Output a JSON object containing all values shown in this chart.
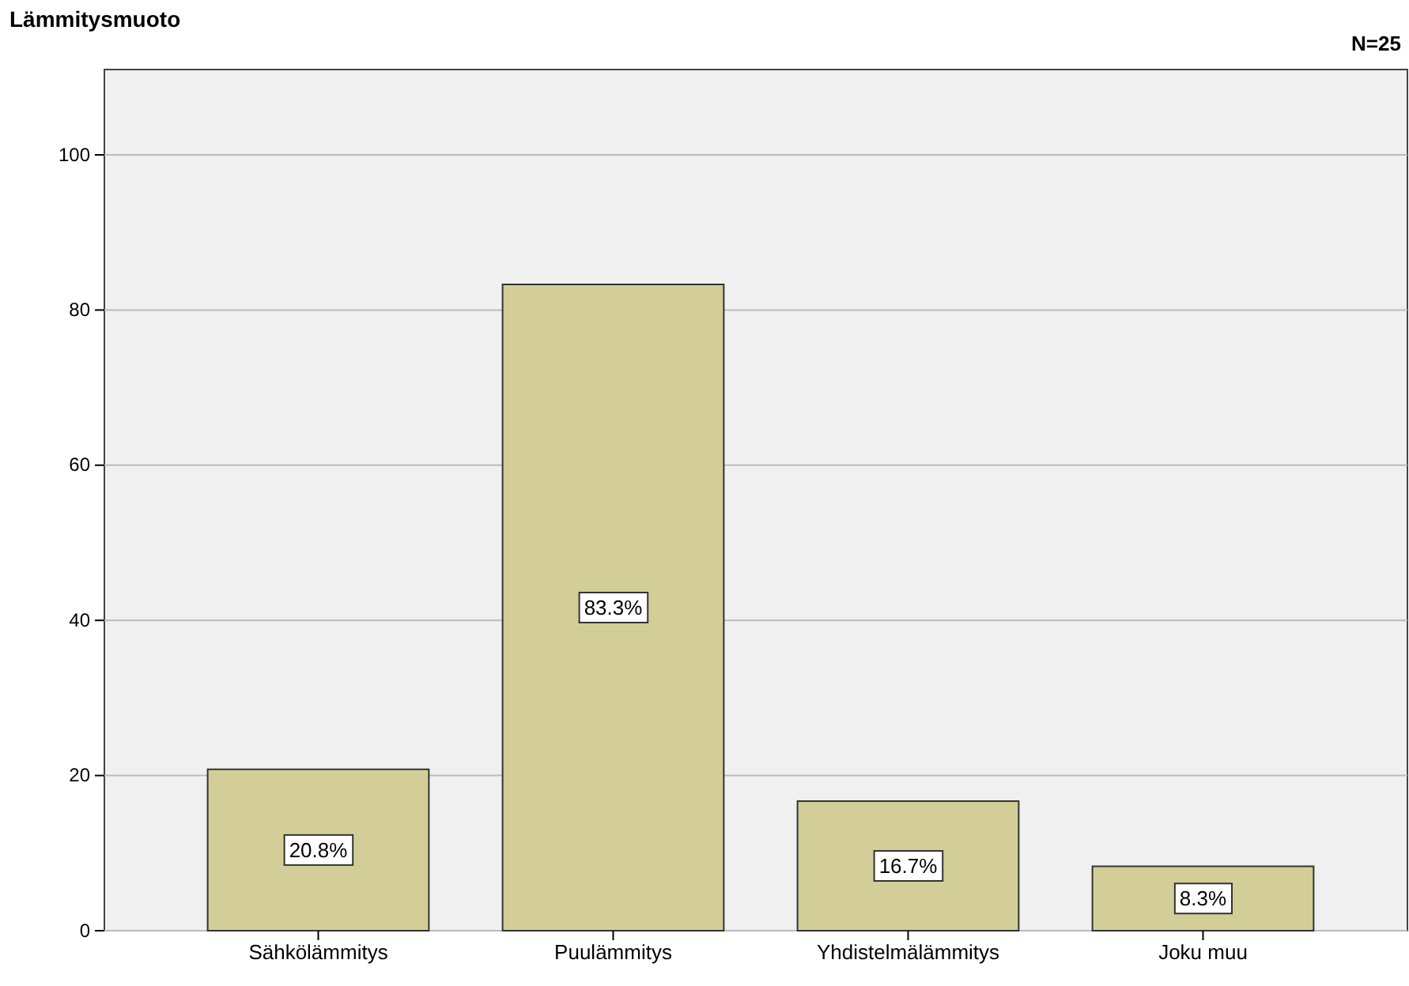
{
  "chart_data": {
    "type": "bar",
    "title": "Lämmitysmuoto",
    "annotations": [
      "N=25"
    ],
    "categories": [
      "Sähkölämmitys",
      "Puulämmitys",
      "Yhdistelmälämmitys",
      "Joku muu"
    ],
    "values": [
      20.8,
      83.3,
      16.7,
      8.3
    ],
    "value_labels": [
      "20.8%",
      "83.3%",
      "16.7%",
      "8.3%"
    ],
    "color": "#d3ce97",
    "ylim": [
      0,
      111
    ],
    "yticks": [
      0,
      20,
      40,
      60,
      80,
      100
    ],
    "grid": "y"
  }
}
